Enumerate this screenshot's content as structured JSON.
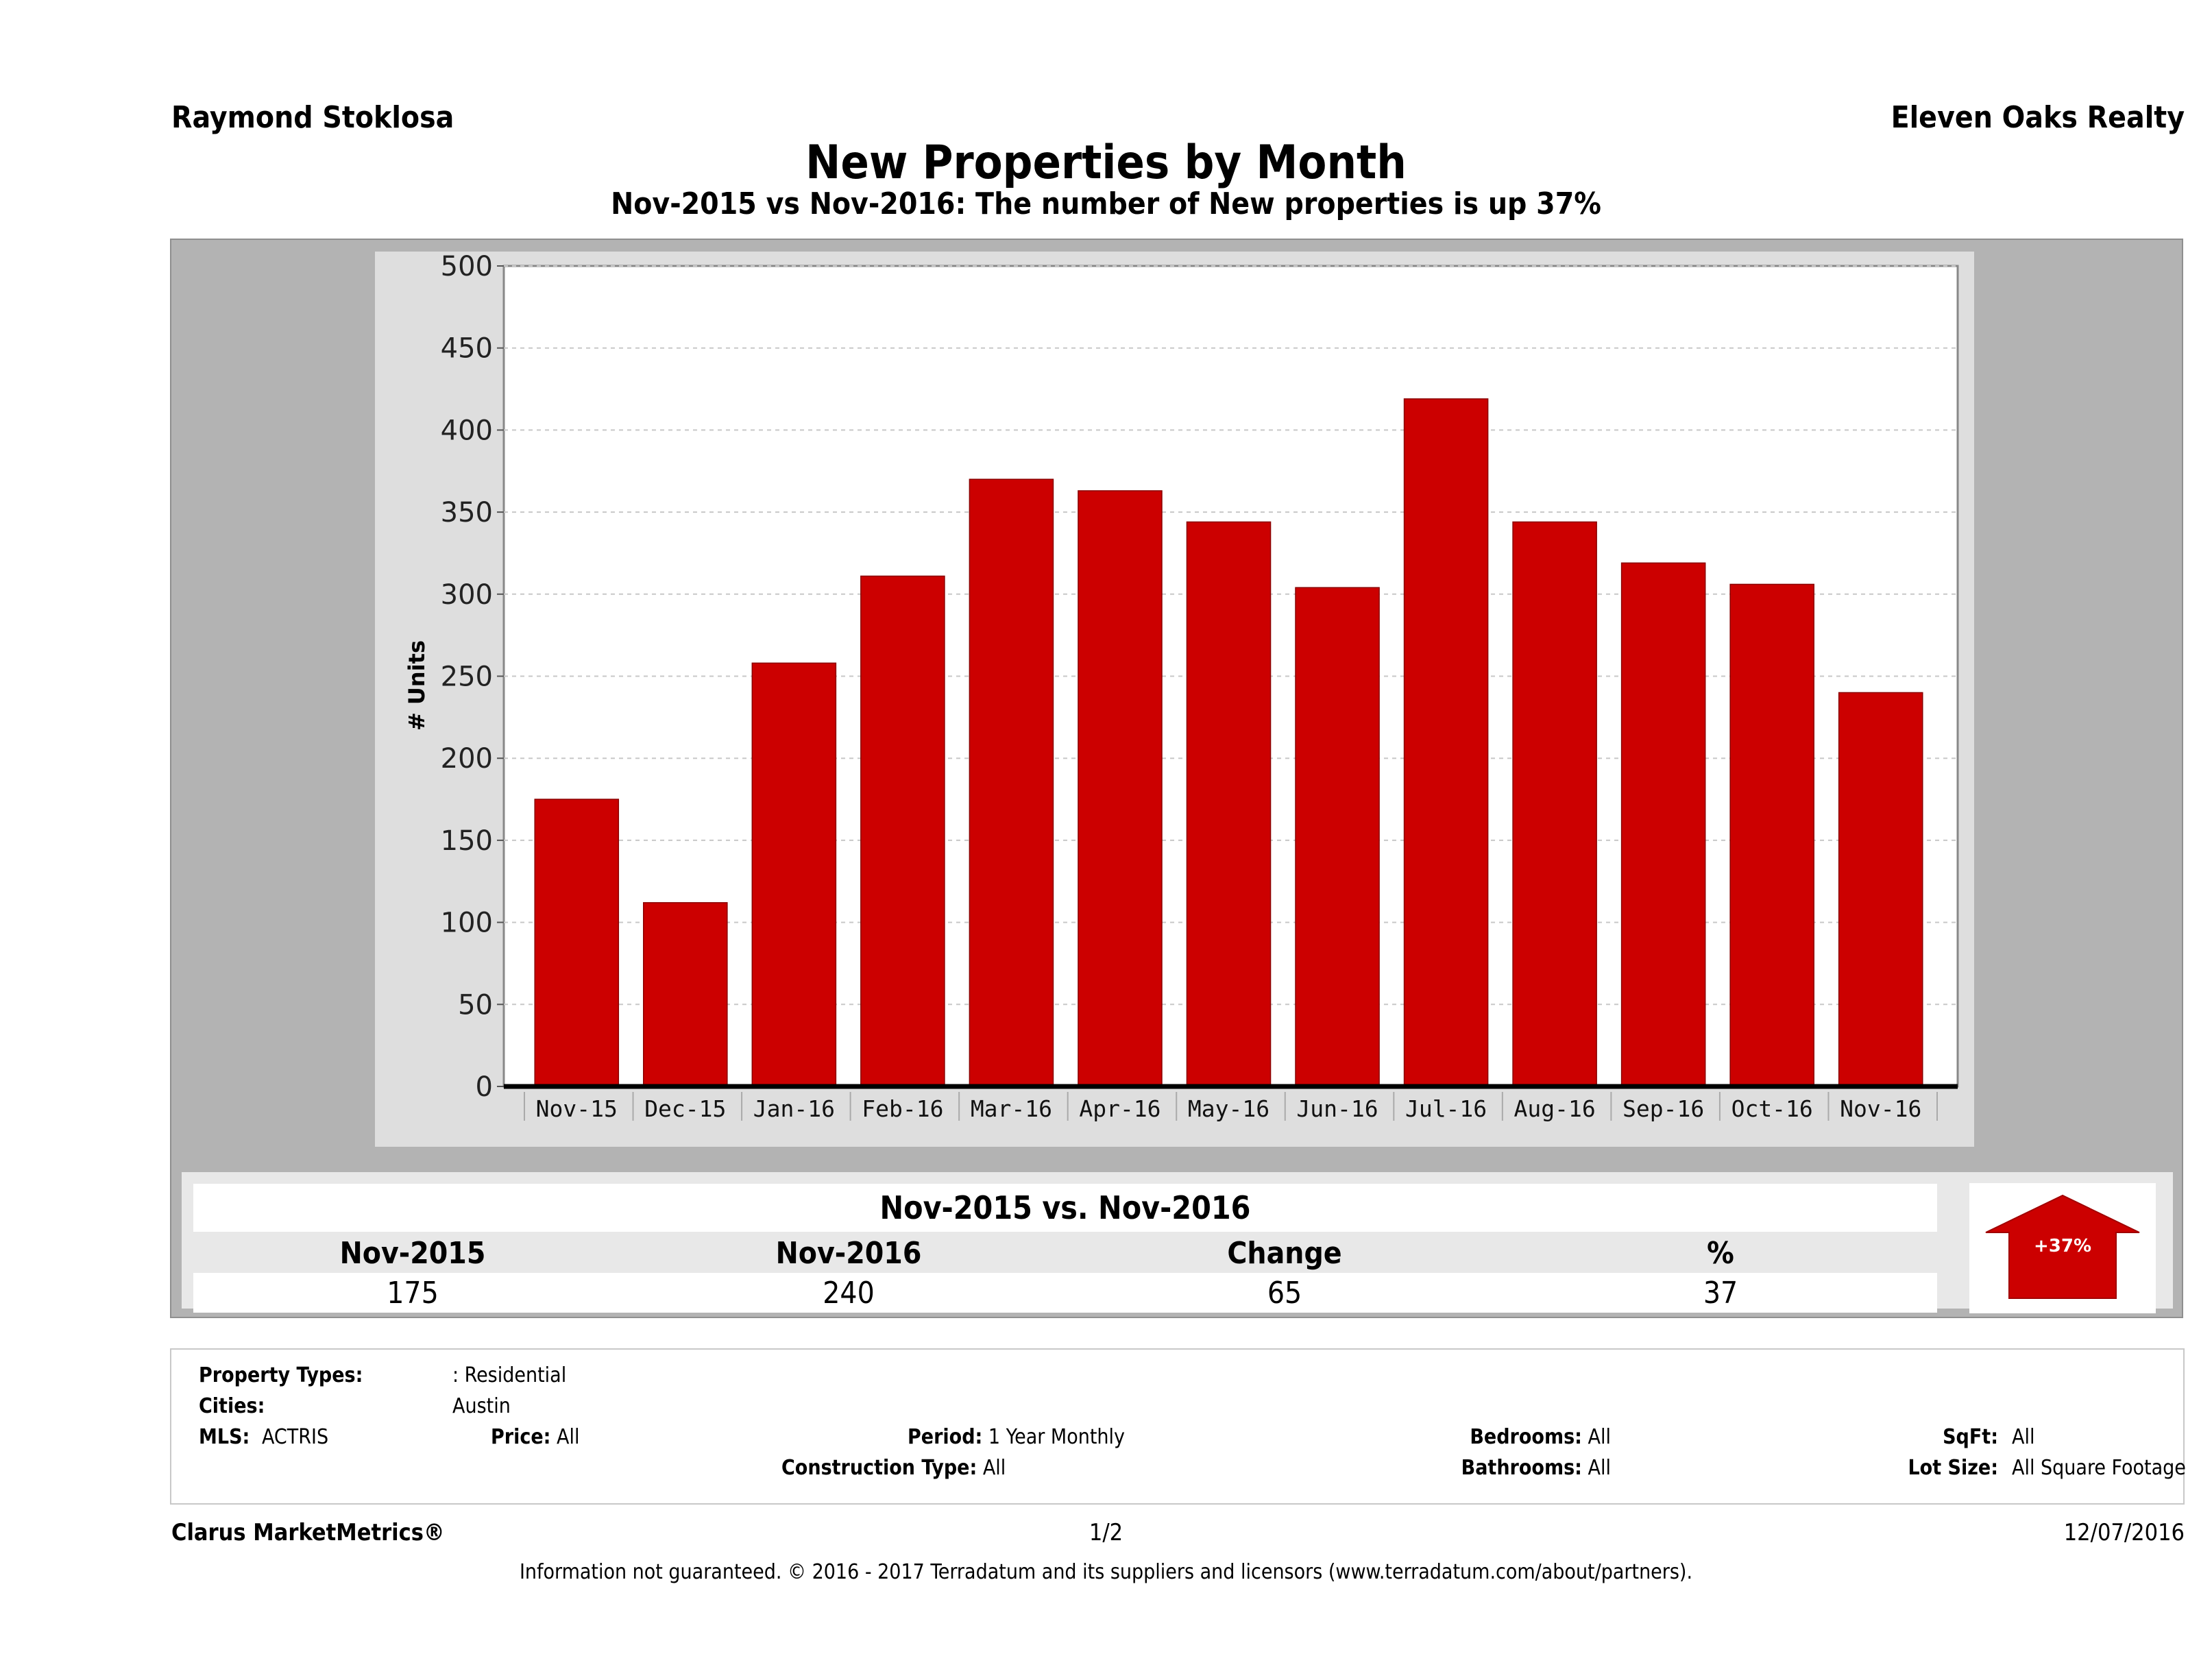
{
  "header": {
    "agent": "Raymond Stoklosa",
    "company": "Eleven Oaks Realty",
    "title": "New Properties by Month",
    "subtitle": "Nov-2015 vs Nov-2016: The number of New  properties is up 37%"
  },
  "chart_data": {
    "type": "bar",
    "title": "New Properties by Month",
    "xlabel": "",
    "ylabel": "# Units",
    "ylim": [
      0,
      500
    ],
    "yticks": [
      "0",
      "50",
      "100",
      "150",
      "200",
      "250",
      "300",
      "350",
      "400",
      "450",
      "500"
    ],
    "grid": true,
    "categories": [
      "Nov-15",
      "Dec-15",
      "Jan-16",
      "Feb-16",
      "Mar-16",
      "Apr-16",
      "May-16",
      "Jun-16",
      "Jul-16",
      "Aug-16",
      "Sep-16",
      "Oct-16",
      "Nov-16"
    ],
    "values": [
      175,
      112,
      258,
      311,
      370,
      363,
      344,
      304,
      419,
      344,
      319,
      306,
      240
    ],
    "bar_color": "#cc0000"
  },
  "comparison": {
    "title": "Nov-2015 vs. Nov-2016",
    "headers": [
      "Nov-2015",
      "Nov-2016",
      "Change",
      "%"
    ],
    "values": [
      "175",
      "240",
      "65",
      "37"
    ],
    "badge": "+37%",
    "badge_color": "#cc0000",
    "direction": "up"
  },
  "filters": {
    "property_types_label": "Property Types:",
    "property_types_value": ": Residential",
    "cities_label": "Cities:",
    "cities_value": "Austin",
    "mls_label": "MLS:",
    "mls_value": "ACTRIS",
    "price_label": "Price:",
    "price_value": "All",
    "period_label": "Period:",
    "period_value": "1 Year Monthly",
    "construction_label": "Construction Type:",
    "construction_value": "All",
    "bedrooms_label": "Bedrooms:",
    "bedrooms_value": "All",
    "bathrooms_label": "Bathrooms:",
    "bathrooms_value": "All",
    "sqft_label": "SqFt:",
    "sqft_value": "All",
    "lot_label": "Lot Size:",
    "lot_value": "All Square Footage"
  },
  "footer": {
    "brand": "Clarus MarketMetrics®",
    "page": "1/2",
    "date": "12/07/2016",
    "disclaimer": "Information not guaranteed. © 2016 - 2017 Terradatum and its suppliers and licensors (www.terradatum.com/about/partners)."
  }
}
